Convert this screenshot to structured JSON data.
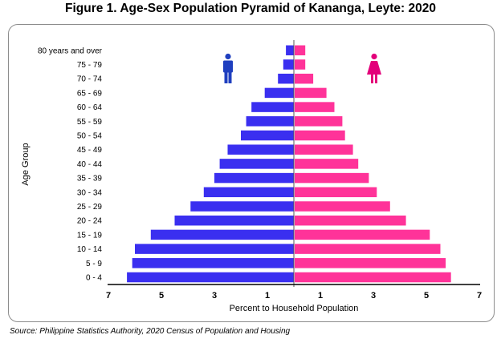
{
  "title": "Figure 1. Age-Sex Population Pyramid of Kananga, Leyte: 2020",
  "source": "Source: Philippine Statistics Authority, 2020 Census of Population and Housing",
  "colors": {
    "male": "#3a2ff0",
    "female": "#ff3399",
    "male_icon": "#1f3fbf",
    "female_icon": "#e3007a"
  },
  "icons": {
    "male": "male-person-icon",
    "female": "female-person-icon"
  },
  "chart_data": {
    "type": "bar",
    "orientation": "horizontal-pyramid",
    "title": "Figure 1. Age-Sex Population Pyramid of Kananga, Leyte: 2020",
    "xlabel": "Percent to Household Population",
    "ylabel": "Age Group",
    "xlim": [
      -7,
      7
    ],
    "xticks": [
      -7,
      -5,
      -3,
      -1,
      1,
      3,
      5,
      7
    ],
    "xtick_labels": [
      "7",
      "5",
      "3",
      "1",
      "1",
      "3",
      "5",
      "7"
    ],
    "categories": [
      "0 - 4",
      "5 - 9",
      "10 - 14",
      "15 - 19",
      "20 - 24",
      "25 - 29",
      "30 - 34",
      "35 - 39",
      "40 - 44",
      "45 - 49",
      "50 - 54",
      "55 - 59",
      "60 - 64",
      "65 - 69",
      "70 - 74",
      "75 - 79",
      "80 years and over"
    ],
    "series": [
      {
        "values": [
          6.3,
          6.1,
          6.0,
          5.4,
          4.5,
          3.9,
          3.4,
          3.0,
          2.8,
          2.5,
          2.0,
          1.8,
          1.6,
          1.1,
          0.6,
          0.4,
          0.3
        ]
      },
      {
        "values": [
          5.9,
          5.7,
          5.5,
          5.1,
          4.2,
          3.6,
          3.1,
          2.8,
          2.4,
          2.2,
          1.9,
          1.8,
          1.5,
          1.2,
          0.7,
          0.4,
          0.4
        ]
      }
    ],
    "grid": false,
    "legend": "icons"
  }
}
